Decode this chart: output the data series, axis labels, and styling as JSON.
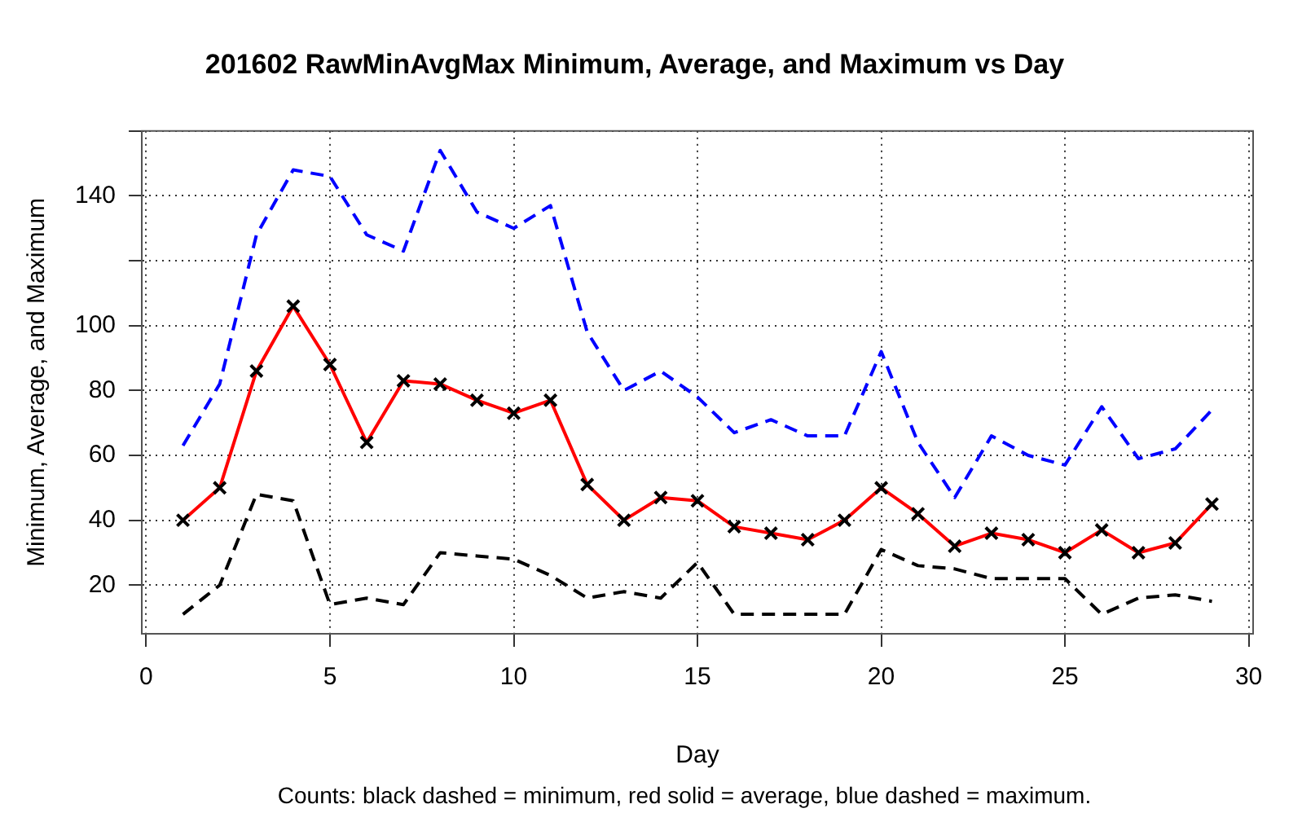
{
  "chart_data": {
    "type": "line",
    "title": "201602 RawMinAvgMax Minimum, Average, and Maximum vs Day",
    "xlabel": "Day",
    "ylabel": "Minimum, Average, and Maximum",
    "annotations": [
      "Counts: black dashed = minimum, red solid = average, blue dashed = maximum."
    ],
    "x": [
      1,
      2,
      3,
      4,
      5,
      6,
      7,
      8,
      9,
      10,
      11,
      12,
      13,
      14,
      15,
      16,
      17,
      18,
      19,
      20,
      21,
      22,
      23,
      24,
      25,
      26,
      27,
      28,
      29
    ],
    "series": [
      {
        "color": "#000000",
        "line_style": "dashed",
        "marker": "none",
        "values": [
          11,
          20,
          48,
          46,
          14,
          16,
          14,
          30,
          29,
          28,
          23,
          16,
          18,
          16,
          27,
          11,
          11,
          11,
          11,
          31,
          26,
          25,
          22,
          22,
          22,
          11,
          16,
          17,
          15
        ]
      },
      {
        "color": "#ff0000",
        "line_style": "solid",
        "marker": "cross",
        "values": [
          40,
          50,
          86,
          106,
          88,
          64,
          83,
          82,
          77,
          73,
          77,
          51,
          40,
          47,
          46,
          38,
          36,
          34,
          40,
          50,
          42,
          32,
          36,
          34,
          30,
          37,
          30,
          33,
          45
        ]
      },
      {
        "color": "#0000ff",
        "line_style": "dashed",
        "marker": "none",
        "values": [
          63,
          82,
          128,
          148,
          146,
          128,
          123,
          154,
          135,
          130,
          137,
          98,
          80,
          86,
          78,
          67,
          71,
          66,
          66,
          92,
          64,
          47,
          66,
          60,
          57,
          75,
          59,
          62,
          74
        ]
      }
    ],
    "xlim": [
      -0.12,
      30.12
    ],
    "xticks": [
      0,
      5,
      10,
      15,
      20,
      25,
      30
    ],
    "ylim": [
      5,
      160
    ],
    "yticks": [
      20,
      40,
      60,
      80,
      100,
      {
        "value": 120,
        "label": null
      },
      140,
      {
        "value": 160,
        "label": null
      }
    ],
    "grid": true,
    "legend": false
  }
}
